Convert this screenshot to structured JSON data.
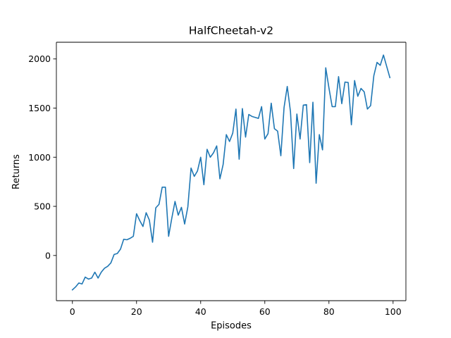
{
  "chart_data": {
    "type": "line",
    "title": "HalfCheetah-v2",
    "xlabel": "Episodes",
    "ylabel": "Returns",
    "xlim": [
      -5,
      104
    ],
    "ylim": [
      -460,
      2170
    ],
    "xticks": [
      0,
      20,
      40,
      60,
      80,
      100
    ],
    "yticks": [
      0,
      500,
      1000,
      1500,
      2000
    ],
    "grid": false,
    "line_color": "#1f77b4",
    "series": [
      {
        "x": [
          0,
          1,
          2,
          3,
          4,
          5,
          6,
          7,
          8,
          9,
          10,
          11,
          12,
          13,
          14,
          15,
          16,
          17,
          18,
          19,
          20,
          21,
          22,
          23,
          24,
          25,
          26,
          27,
          28,
          29,
          30,
          31,
          32,
          33,
          34,
          35,
          36,
          37,
          38,
          39,
          40,
          41,
          42,
          43,
          44,
          45,
          46,
          47,
          48,
          49,
          50,
          51,
          52,
          53,
          54,
          55,
          56,
          57,
          58,
          59,
          60,
          61,
          62,
          63,
          64,
          65,
          66,
          67,
          68,
          69,
          70,
          71,
          72,
          73,
          74,
          75,
          76,
          77,
          78,
          79,
          80,
          81,
          82,
          83,
          84,
          85,
          86,
          87,
          88,
          89,
          90,
          91,
          92,
          93,
          94,
          95,
          96,
          97,
          98,
          99
        ],
        "values": [
          -350,
          -320,
          -280,
          -290,
          -220,
          -240,
          -230,
          -170,
          -230,
          -170,
          -130,
          -110,
          -75,
          10,
          20,
          65,
          165,
          160,
          175,
          195,
          425,
          355,
          295,
          435,
          360,
          135,
          485,
          520,
          695,
          695,
          195,
          380,
          550,
          410,
          490,
          320,
          495,
          890,
          805,
          860,
          1000,
          720,
          1080,
          1000,
          1045,
          1115,
          780,
          925,
          1230,
          1160,
          1245,
          1490,
          980,
          1495,
          1205,
          1435,
          1415,
          1405,
          1395,
          1515,
          1185,
          1240,
          1550,
          1290,
          1265,
          1015,
          1505,
          1720,
          1465,
          885,
          1440,
          1185,
          1530,
          1535,
          945,
          1560,
          735,
          1230,
          1075,
          1910,
          1705,
          1515,
          1515,
          1820,
          1545,
          1765,
          1760,
          1330,
          1780,
          1620,
          1700,
          1665,
          1490,
          1525,
          1830,
          1965,
          1935,
          2040,
          1925,
          1810
        ]
      }
    ]
  }
}
